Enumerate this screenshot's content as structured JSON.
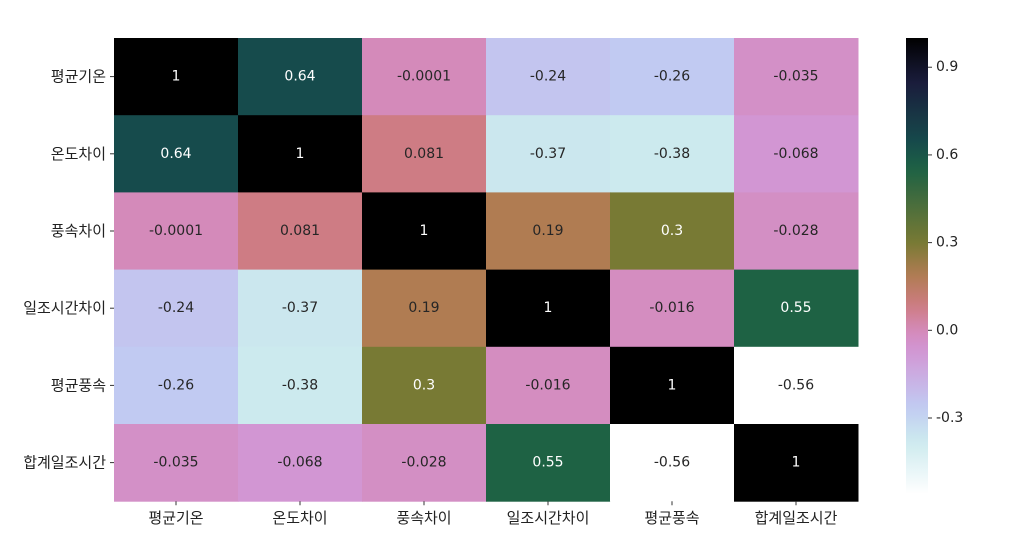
{
  "chart_data": {
    "type": "heatmap",
    "title": "",
    "xlabel": "",
    "ylabel": "",
    "x_categories": [
      "평균기온",
      "온도차이",
      "풍속차이",
      "일조시간차이",
      "평균풍속",
      "합계일조시간"
    ],
    "y_categories": [
      "평균기온",
      "온도차이",
      "풍속차이",
      "일조시간차이",
      "평균풍속",
      "합계일조시간"
    ],
    "values": [
      [
        1,
        0.64,
        -0.0001,
        -0.24,
        -0.26,
        -0.035
      ],
      [
        0.64,
        1,
        0.081,
        -0.37,
        -0.38,
        -0.068
      ],
      [
        -0.0001,
        0.081,
        1,
        0.19,
        0.3,
        -0.028
      ],
      [
        -0.24,
        -0.37,
        0.19,
        1,
        -0.016,
        0.55
      ],
      [
        -0.26,
        -0.38,
        0.3,
        -0.016,
        1,
        -0.56
      ],
      [
        -0.035,
        -0.068,
        -0.028,
        0.55,
        -0.56,
        1
      ]
    ],
    "value_labels": [
      [
        "1",
        "0.64",
        "-0.0001",
        "-0.24",
        "-0.26",
        "-0.035"
      ],
      [
        "0.64",
        "1",
        "0.081",
        "-0.37",
        "-0.38",
        "-0.068"
      ],
      [
        "-0.0001",
        "0.081",
        "1",
        "0.19",
        "0.3",
        "-0.028"
      ],
      [
        "-0.24",
        "-0.37",
        "0.19",
        "1",
        "-0.016",
        "0.55"
      ],
      [
        "-0.26",
        "-0.38",
        "0.3",
        "-0.016",
        "1",
        "-0.56"
      ],
      [
        "-0.035",
        "-0.068",
        "-0.028",
        "0.55",
        "-0.56",
        "1"
      ]
    ],
    "colormap": "cubehelix_r",
    "colorbar": {
      "range": [
        -0.56,
        1
      ],
      "ticks": [
        0.9,
        0.6,
        0.3,
        0.0,
        -0.3
      ],
      "tick_labels": [
        "0.9",
        "0.6",
        "0.3",
        "0.0",
        "-0.3"
      ]
    }
  }
}
